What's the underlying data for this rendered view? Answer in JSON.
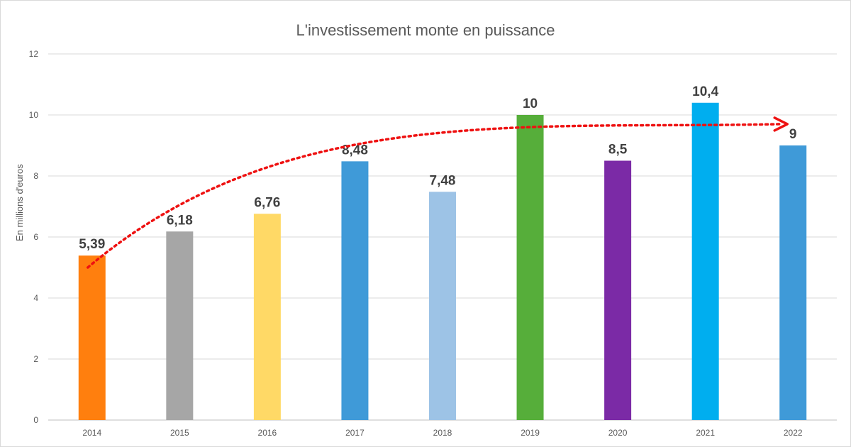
{
  "chart_data": {
    "type": "bar",
    "title": "L'investissement monte en puissance",
    "ylabel": "En millions d'euros",
    "xlabel": "",
    "categories": [
      "2014",
      "2015",
      "2016",
      "2017",
      "2018",
      "2019",
      "2020",
      "2021",
      "2022"
    ],
    "values": [
      5.39,
      6.18,
      6.76,
      8.48,
      7.48,
      10,
      8.5,
      10.4,
      9
    ],
    "data_labels": [
      "5,39",
      "6,18",
      "6,76",
      "8,48",
      "7,48",
      "10",
      "8,5",
      "10,4",
      "9"
    ],
    "colors": [
      "#ff7f0e",
      "#a6a6a6",
      "#ffd966",
      "#3f9ad8",
      "#9dc3e6",
      "#56ae3a",
      "#7b2aa6",
      "#00aeef",
      "#3f9ad8"
    ],
    "yticks": [
      "0",
      "2",
      "4",
      "6",
      "8",
      "10",
      "12"
    ],
    "ylim": [
      0,
      12
    ],
    "grid": true,
    "legend": "none",
    "trend_annotation": {
      "style": "dotted-arrow",
      "color": "#ee1111",
      "from": {
        "x": "2014",
        "y": 5
      },
      "to": {
        "x": "2022",
        "y": 9.7
      }
    }
  }
}
